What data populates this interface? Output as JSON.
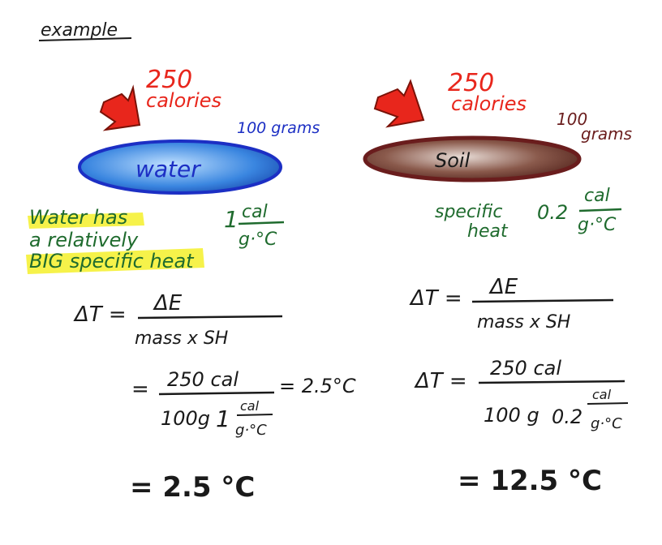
{
  "title": "example",
  "colors": {
    "ink": "#1a1a1a",
    "red": "#e8261c",
    "blue": "#1c2fc4",
    "brown": "#6a1d1d",
    "green": "#1f6b2e",
    "highlight": "#f4f02a",
    "water_fill": "#3a86e0",
    "soil_fill": "#6b3a2e"
  },
  "water": {
    "energy_value": "250",
    "energy_unit": "calories",
    "mass": "100 grams",
    "label": "water",
    "note_line1": "Water has",
    "note_line2": "a relatively",
    "note_line3": "BIG specific heat",
    "sh_coef": "1",
    "sh_num": "cal",
    "sh_den": "g·°C",
    "formula_lhs": "ΔT =",
    "formula_num": "ΔE",
    "formula_den": "mass x SH",
    "sub_eq": "=",
    "sub_num": "250 cal",
    "sub_den_a": "100g",
    "sub_den_coef": "1",
    "sub_den_num": "cal",
    "sub_den_den": "g·°C",
    "sub_result": "= 2.5°C",
    "final": "= 2.5 °C"
  },
  "soil": {
    "energy_value": "250",
    "energy_unit": "calories",
    "mass_line1": "100",
    "mass_line2": "grams",
    "label": "Soil",
    "sh_label1": "specific",
    "sh_label2": "heat",
    "sh_coef": "0.2",
    "sh_num": "cal",
    "sh_den": "g·°C",
    "formula_lhs": "ΔT =",
    "formula_num": "ΔE",
    "formula_den": "mass x SH",
    "sub_lhs": "ΔT =",
    "sub_num": "250 cal",
    "sub_den_a": "100 g",
    "sub_den_coef": "0.2",
    "sub_den_num": "cal",
    "sub_den_den": "g·°C",
    "final": "= 12.5 °C"
  }
}
